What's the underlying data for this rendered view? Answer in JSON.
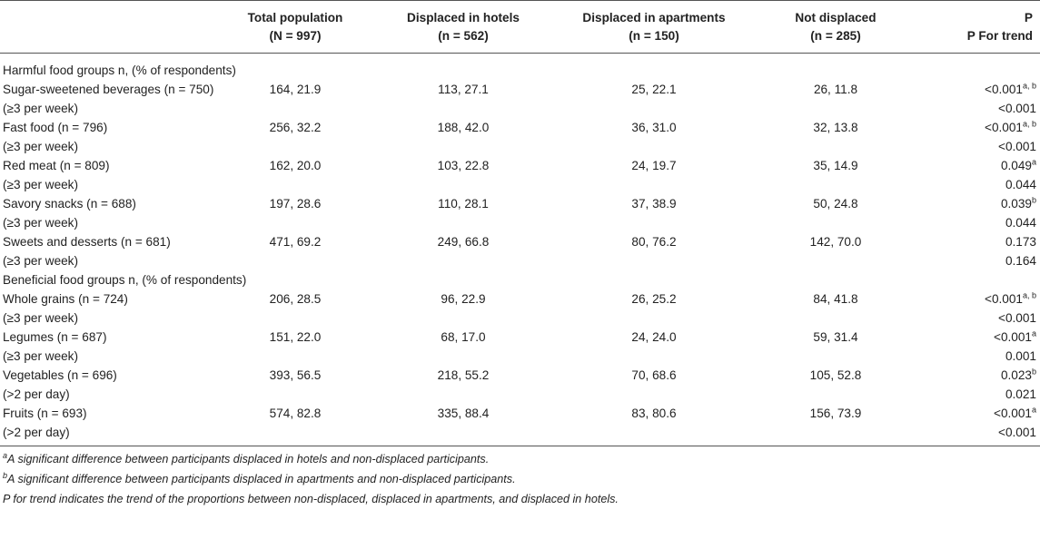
{
  "table": {
    "headers": [
      {
        "line1": "",
        "line2": ""
      },
      {
        "line1": "Total population",
        "line2": "(N = 997)"
      },
      {
        "line1": "Displaced in hotels",
        "line2": "(n = 562)"
      },
      {
        "line1": "Displaced in apartments",
        "line2": "(n = 150)"
      },
      {
        "line1": "Not displaced",
        "line2": "(n = 285)"
      },
      {
        "line1": "P",
        "line2": "P For trend"
      }
    ],
    "sections": {
      "harmful": "Harmful food groups n, (% of respondents)",
      "beneficial": "Beneficial food groups n, (% of respondents)"
    },
    "rows": [
      {
        "label": "Sugar-sweetened beverages (n = 750)",
        "freq": "(≥3 per week)",
        "total": "164, 21.9",
        "hotels": "113, 27.1",
        "apartments": "25, 22.1",
        "notdisplaced": "26, 11.8",
        "p": "<0.001",
        "sup": "a, b",
        "trend": "<0.001"
      },
      {
        "label": "Fast food (n = 796)",
        "freq": "(≥3 per week)",
        "total": "256, 32.2",
        "hotels": "188, 42.0",
        "apartments": "36, 31.0",
        "notdisplaced": "32, 13.8",
        "p": "<0.001",
        "sup": "a, b",
        "trend": "<0.001"
      },
      {
        "label": "Red meat (n = 809)",
        "freq": "(≥3 per week)",
        "total": "162, 20.0",
        "hotels": "103, 22.8",
        "apartments": "24, 19.7",
        "notdisplaced": "35, 14.9",
        "p": "0.049",
        "sup": "a",
        "trend": "0.044"
      },
      {
        "label": "Savory snacks (n = 688)",
        "freq": "(≥3 per week)",
        "total": "197, 28.6",
        "hotels": "110, 28.1",
        "apartments": "37, 38.9",
        "notdisplaced": "50, 24.8",
        "p": "0.039",
        "sup": "b",
        "trend": "0.044"
      },
      {
        "label": "Sweets and desserts (n = 681)",
        "freq": "(≥3 per week)",
        "total": "471, 69.2",
        "hotels": "249, 66.8",
        "apartments": "80, 76.2",
        "notdisplaced": "142, 70.0",
        "p": "0.173",
        "sup": "",
        "trend": "0.164"
      },
      {
        "label": "Whole grains (n = 724)",
        "freq": "(≥3 per week)",
        "total": "206, 28.5",
        "hotels": "96, 22.9",
        "apartments": "26, 25.2",
        "notdisplaced": "84, 41.8",
        "p": "<0.001",
        "sup": "a, b",
        "trend": "<0.001"
      },
      {
        "label": "Legumes (n = 687)",
        "freq": "(≥3 per week)",
        "total": "151, 22.0",
        "hotels": "68, 17.0",
        "apartments": "24, 24.0",
        "notdisplaced": "59, 31.4",
        "p": "<0.001",
        "sup": "a",
        "trend": "0.001"
      },
      {
        "label": "Vegetables (n = 696)",
        "freq": "(>2 per day)",
        "total": "393, 56.5",
        "hotels": "218, 55.2",
        "apartments": "70, 68.6",
        "notdisplaced": "105, 52.8",
        "p": "0.023",
        "sup": "b",
        "trend": "0.021"
      },
      {
        "label": "Fruits (n = 693)",
        "freq": "(>2 per day)",
        "total": "574, 82.8",
        "hotels": "335, 88.4",
        "apartments": "83, 80.6",
        "notdisplaced": "156, 73.9",
        "p": "<0.001",
        "sup": "a",
        "trend": "<0.001"
      }
    ]
  },
  "footnotes": {
    "a_mark": "a",
    "a_text": "A significant difference between participants displaced in hotels and non-displaced participants.",
    "b_mark": "b",
    "b_text": "A significant difference between participants displaced in apartments and non-displaced participants.",
    "trend_text": "P for trend indicates the trend of the proportions between non-displaced, displaced in apartments, and displaced in hotels."
  }
}
